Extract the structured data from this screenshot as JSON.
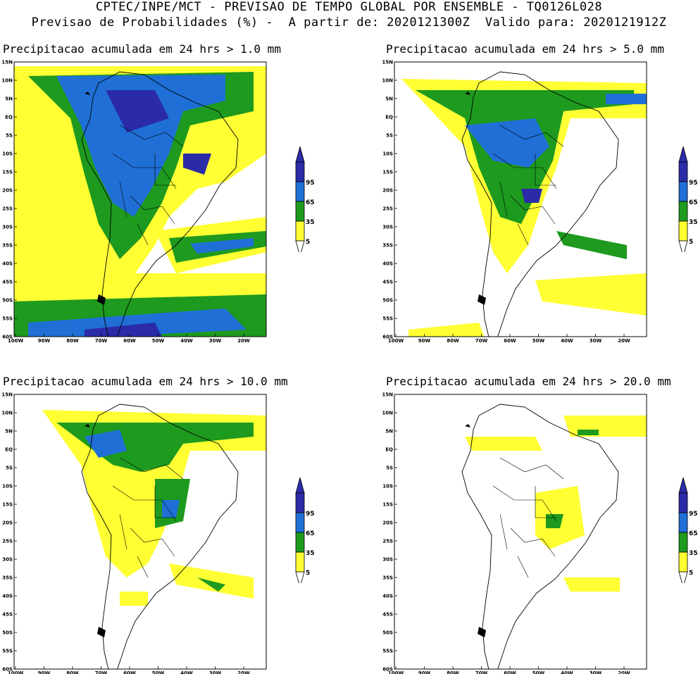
{
  "header": {
    "line1": "CPTEC/INPE/MCT - PREVISAO DE TEMPO GLOBAL POR ENSEMBLE - TQ0126L028",
    "line2": "Previsao de Probabilidades (%) -  A partir de: 2020121300Z  Valido para: 2020121912Z"
  },
  "panels": [
    {
      "title": "Precipitacao acumulada em 24 hrs > 1.0 mm",
      "level": 1
    },
    {
      "title": "Precipitacao acumulada em 24 hrs > 5.0 mm",
      "level": 2
    },
    {
      "title": "Precipitacao acumulada em 24 hrs > 10.0 mm",
      "level": 3
    },
    {
      "title": "Precipitacao acumulada em 24 hrs > 20.0 mm",
      "level": 4
    }
  ],
  "lat_labels": [
    "15N",
    "10N",
    "5N",
    "EQ",
    "5S",
    "10S",
    "15S",
    "20S",
    "25S",
    "30S",
    "35S",
    "40S",
    "45S",
    "50S",
    "55S",
    "60S"
  ],
  "lon_labels": [
    "100W",
    "90W",
    "80W",
    "70W",
    "60W",
    "50W",
    "40W",
    "30W",
    "20W"
  ],
  "colorbar": {
    "labels": [
      "95",
      "65",
      "35",
      "5"
    ],
    "colors": [
      "#2b2ba8",
      "#1f6fd6",
      "#1e9a1e",
      "#ffff33"
    ]
  },
  "colors": {
    "yellow": "#ffff33",
    "green": "#1e9a1e",
    "blue": "#1f6fd6",
    "dark_blue": "#2b2ba8"
  }
}
